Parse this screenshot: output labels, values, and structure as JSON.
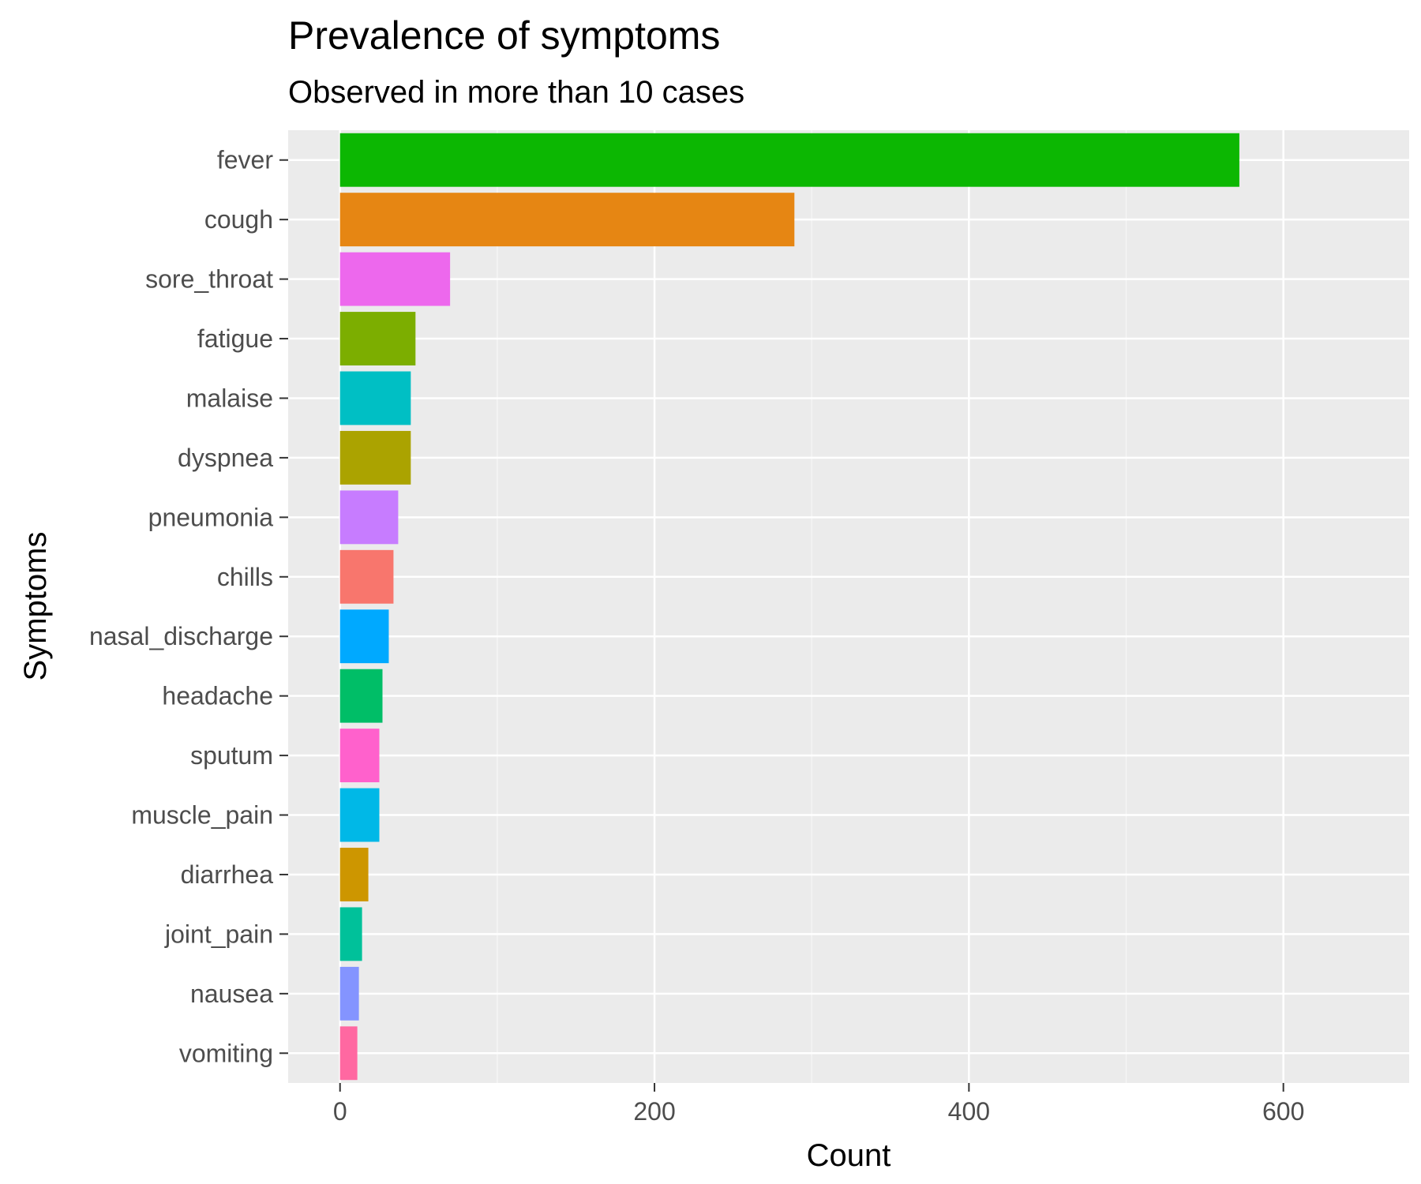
{
  "chart_data": {
    "type": "bar",
    "orientation": "horizontal",
    "title": "Prevalence of symptoms",
    "subtitle": "Observed in more than 10 cases",
    "xlabel": "Count",
    "ylabel": "Symptoms",
    "xlim": [
      -33,
      680
    ],
    "xticks": [
      0,
      200,
      400,
      600
    ],
    "grid": true,
    "legend": "none",
    "categories": [
      "fever",
      "cough",
      "sore_throat",
      "fatigue",
      "malaise",
      "dyspnea",
      "pneumonia",
      "chills",
      "nasal_discharge",
      "headache",
      "sputum",
      "muscle_pain",
      "diarrhea",
      "joint_pain",
      "nausea",
      "vomiting"
    ],
    "values": [
      572,
      289,
      70,
      48,
      45,
      45,
      37,
      34,
      31,
      27,
      25,
      25,
      18,
      14,
      12,
      11
    ],
    "colors": [
      "#0CB702",
      "#E68613",
      "#ED68ED",
      "#7CAE00",
      "#00BFC4",
      "#ABA300",
      "#C77CFF",
      "#F8766D",
      "#00A9FF",
      "#00BE67",
      "#FF61CC",
      "#00B8E7",
      "#CD9600",
      "#00C19A",
      "#8494FF",
      "#FF68A1"
    ]
  },
  "theme": {
    "panel_background": "#EBEBEB",
    "grid_major": "#FFFFFF",
    "grid_minor": "#F5F5F5",
    "tick_color": "#333333"
  }
}
